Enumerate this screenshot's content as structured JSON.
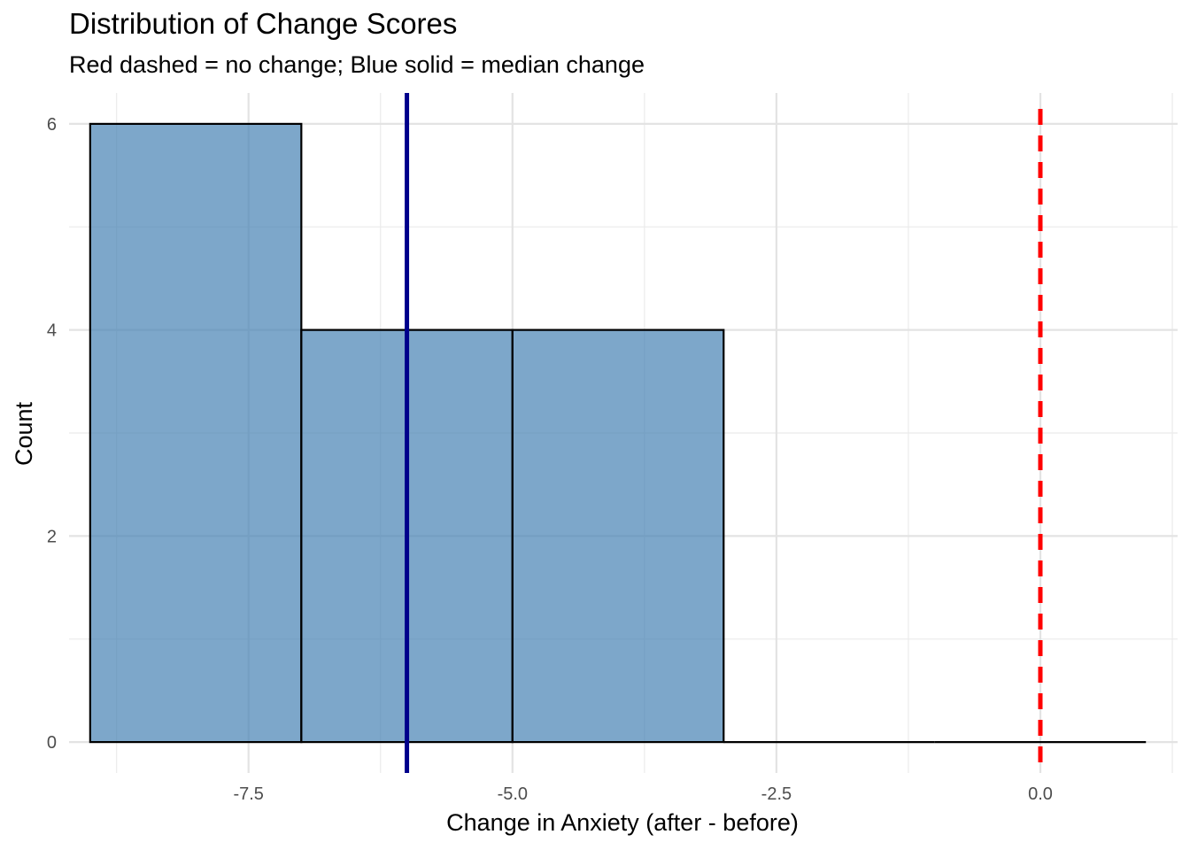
{
  "chart_data": {
    "type": "bar",
    "subtype": "histogram",
    "title": "Distribution of Change Scores",
    "subtitle": "Red dashed = no change; Blue solid = median change",
    "xlabel": "Change in Anxiety (after - before)",
    "ylabel": "Count",
    "xlim": [
      -9.2,
      1.3
    ],
    "ylim": [
      -0.3,
      6.3
    ],
    "x_ticks": [
      -7.5,
      -5.0,
      -2.5,
      0.0
    ],
    "x_tick_labels": [
      "-7.5",
      "-5.0",
      "-2.5",
      "0.0"
    ],
    "y_ticks": [
      0,
      2,
      4,
      6
    ],
    "y_tick_labels": [
      "0",
      "2",
      "4",
      "6"
    ],
    "bins": [
      {
        "x0": -9,
        "x1": -7,
        "count": 6
      },
      {
        "x0": -7,
        "x1": -5,
        "count": 4
      },
      {
        "x0": -5,
        "x1": -3,
        "count": 4
      },
      {
        "x0": -3,
        "x1": -1,
        "count": 0
      },
      {
        "x0": -1,
        "x1": 1,
        "count": 0
      }
    ],
    "reference_lines": [
      {
        "label": "no change",
        "x": 0,
        "style": "dashed",
        "color": "#ff0000"
      },
      {
        "label": "median change",
        "x": -6,
        "style": "solid",
        "color": "#00008b"
      }
    ],
    "bar_fill": "#4682b4",
    "bar_outline": "#000000",
    "grid": true
  }
}
